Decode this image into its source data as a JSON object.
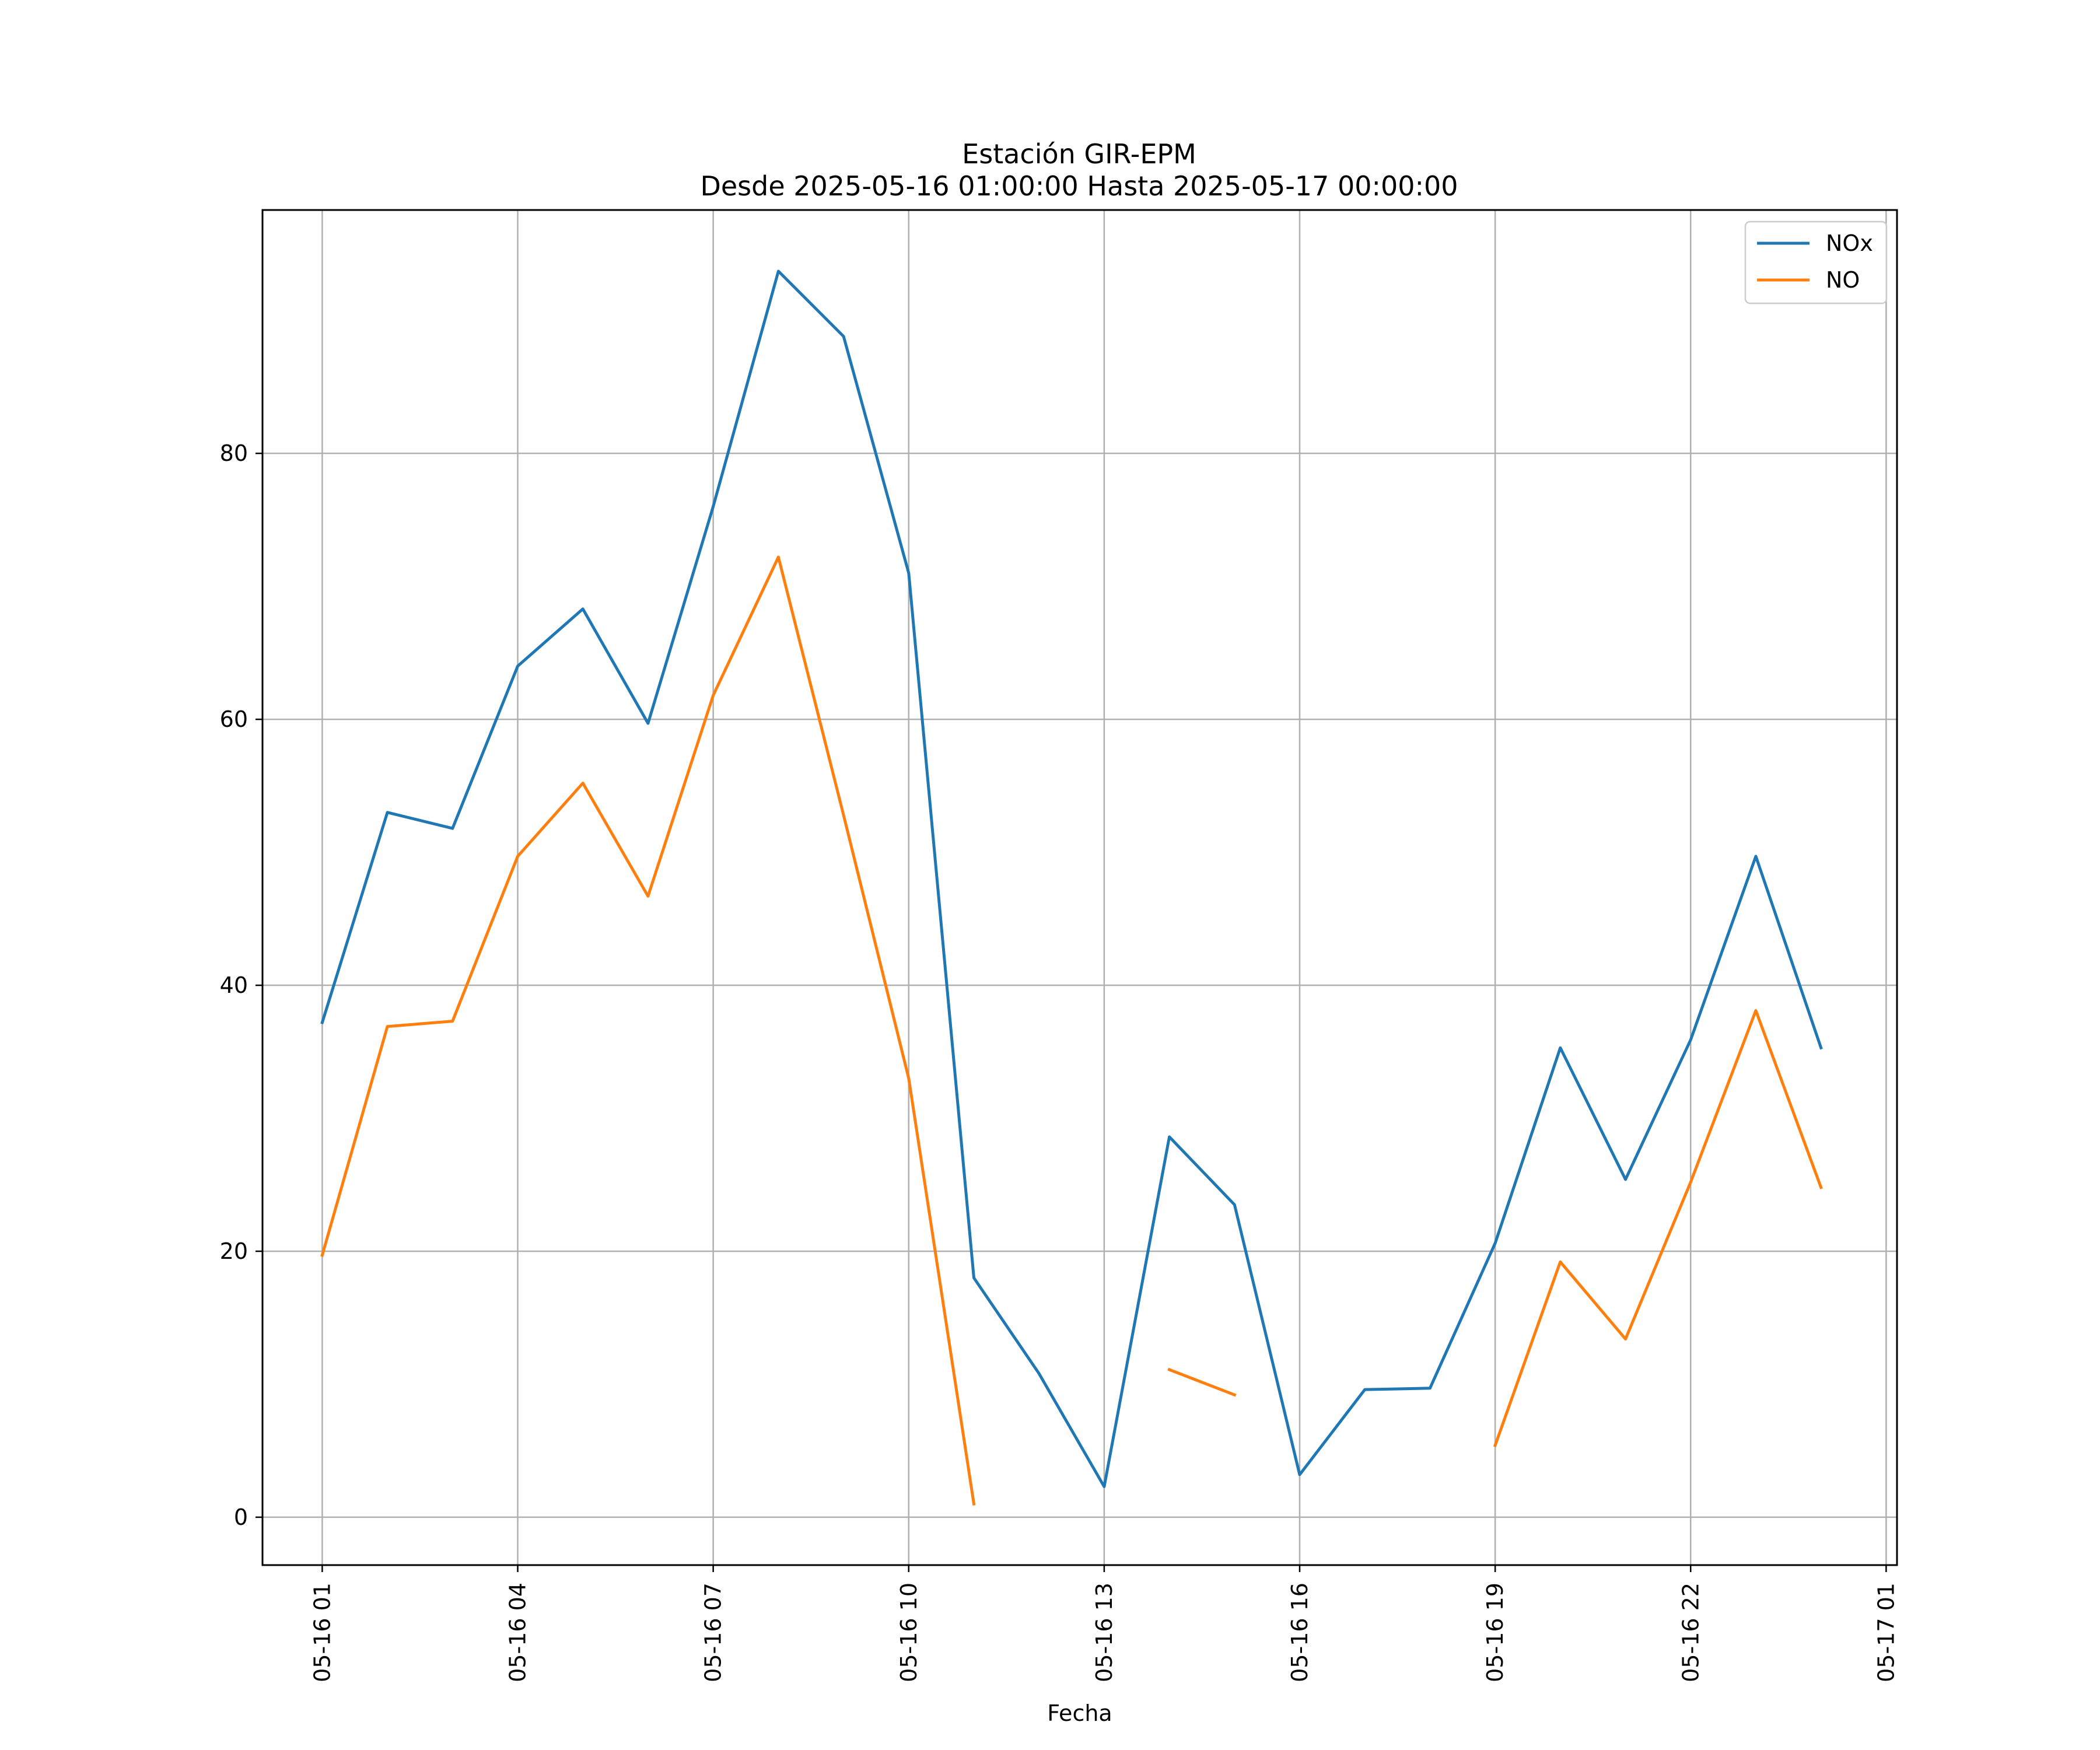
{
  "chart_data": {
    "type": "line",
    "title": "Estación GIR-EPM",
    "subtitle": "Desde 2025-05-16 01:00:00 Hasta 2025-05-17 00:00:00",
    "xlabel": "Fecha",
    "ylabel": "",
    "x": [
      "2025-05-16 01:00",
      "2025-05-16 02:00",
      "2025-05-16 03:00",
      "2025-05-16 04:00",
      "2025-05-16 05:00",
      "2025-05-16 06:00",
      "2025-05-16 07:00",
      "2025-05-16 08:00",
      "2025-05-16 09:00",
      "2025-05-16 10:00",
      "2025-05-16 11:00",
      "2025-05-16 12:00",
      "2025-05-16 13:00",
      "2025-05-16 14:00",
      "2025-05-16 15:00",
      "2025-05-16 16:00",
      "2025-05-16 17:00",
      "2025-05-16 18:00",
      "2025-05-16 19:00",
      "2025-05-16 20:00",
      "2025-05-16 21:00",
      "2025-05-16 22:00",
      "2025-05-16 23:00",
      "2025-05-17 00:00"
    ],
    "xlim": [
      "2025-05-16 00:05",
      "2025-05-17 01:10"
    ],
    "ylim": [
      -3.6,
      98.3
    ],
    "xticks": [
      {
        "value": "2025-05-16 01:00",
        "label": "05-16 01"
      },
      {
        "value": "2025-05-16 04:00",
        "label": "05-16 04"
      },
      {
        "value": "2025-05-16 07:00",
        "label": "05-16 07"
      },
      {
        "value": "2025-05-16 10:00",
        "label": "05-16 10"
      },
      {
        "value": "2025-05-16 13:00",
        "label": "05-16 13"
      },
      {
        "value": "2025-05-16 16:00",
        "label": "05-16 16"
      },
      {
        "value": "2025-05-16 19:00",
        "label": "05-16 19"
      },
      {
        "value": "2025-05-16 22:00",
        "label": "05-16 22"
      },
      {
        "value": "2025-05-17 01:00",
        "label": "05-17 01"
      }
    ],
    "yticks": [
      {
        "value": 0,
        "label": "0"
      },
      {
        "value": 20,
        "label": "20"
      },
      {
        "value": 40,
        "label": "40"
      },
      {
        "value": 60,
        "label": "60"
      },
      {
        "value": 80,
        "label": "80"
      }
    ],
    "grid": true,
    "legend": "top-right",
    "series": [
      {
        "name": "NOx",
        "color": "#1f77b4",
        "values": [
          37.2,
          53.0,
          51.8,
          64.0,
          68.3,
          59.7,
          76.0,
          93.7,
          88.8,
          71.0,
          18.0,
          10.8,
          2.3,
          28.6,
          23.5,
          3.2,
          9.6,
          9.7,
          20.6,
          35.3,
          25.4,
          35.9,
          49.7,
          35.3
        ]
      },
      {
        "name": "NO",
        "color": "#ff7f0e",
        "values": [
          19.7,
          36.9,
          37.3,
          49.7,
          55.2,
          46.7,
          61.8,
          72.2,
          52.8,
          33.0,
          1.0,
          null,
          null,
          11.1,
          9.2,
          null,
          null,
          null,
          5.4,
          19.2,
          13.4,
          25.2,
          38.1,
          24.8
        ]
      }
    ]
  }
}
